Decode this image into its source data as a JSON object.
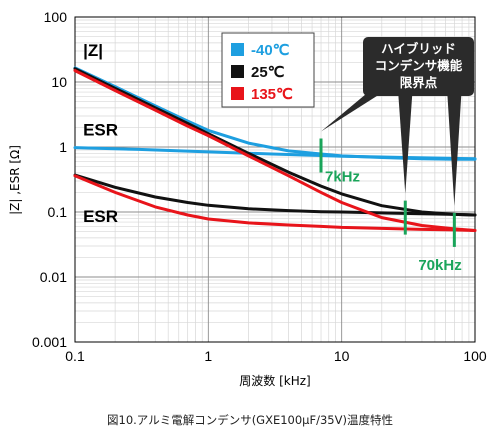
{
  "chart_data": {
    "type": "line",
    "title": "",
    "caption": "図10.アルミ電解コンデンサ(GXE100μF/35V)温度特性",
    "xlabel": "周波数 [kHz]",
    "ylabel": "|Z| ,ESR [Ω]",
    "x_scale": "log",
    "y_scale": "log",
    "xlim": [
      0.1,
      100
    ],
    "ylim": [
      0.001,
      100
    ],
    "x_ticks": [
      {
        "value": 0.1,
        "label": "0.1"
      },
      {
        "value": 1,
        "label": "1"
      },
      {
        "value": 10,
        "label": "10"
      },
      {
        "value": 100,
        "label": "100"
      }
    ],
    "y_ticks": [
      {
        "value": 100,
        "label": "100"
      },
      {
        "value": 10,
        "label": "10"
      },
      {
        "value": 1,
        "label": "1"
      },
      {
        "value": 0.1,
        "label": "0.1"
      },
      {
        "value": 0.01,
        "label": "0.01"
      },
      {
        "value": 0.001,
        "label": "0.001"
      }
    ],
    "grid": true,
    "legend": [
      {
        "label": "-40℃",
        "color": "#1e9fe0",
        "text_color": "#1e9fe0"
      },
      {
        "label": "25℃",
        "color": "#111111",
        "text_color": "#111111"
      },
      {
        "label": "135℃",
        "color": "#e8141a",
        "text_color": "#e8141a"
      }
    ],
    "legend_position": "top-center",
    "series": [
      {
        "legend_index": 0,
        "kind": "Z",
        "color": "#1e9fe0",
        "x": [
          0.1,
          0.2,
          0.4,
          0.7,
          1,
          2,
          4,
          7,
          10,
          20,
          40,
          70,
          100
        ],
        "y": [
          16.5,
          8.5,
          4.3,
          2.5,
          1.8,
          1.15,
          0.87,
          0.78,
          0.73,
          0.69,
          0.66,
          0.65,
          0.65
        ]
      },
      {
        "legend_index": 0,
        "kind": "ESR",
        "color": "#1e9fe0",
        "x": [
          0.1,
          0.3,
          1,
          3,
          7,
          10,
          30,
          100
        ],
        "y": [
          0.98,
          0.92,
          0.84,
          0.78,
          0.74,
          0.72,
          0.69,
          0.66
        ]
      },
      {
        "legend_index": 1,
        "kind": "Z",
        "color": "#111111",
        "x": [
          0.1,
          0.2,
          0.4,
          0.7,
          1,
          2,
          4,
          7,
          10,
          20,
          40,
          70,
          100
        ],
        "y": [
          16,
          8.0,
          4.0,
          2.3,
          1.6,
          0.8,
          0.41,
          0.25,
          0.19,
          0.125,
          0.1,
          0.092,
          0.09
        ]
      },
      {
        "legend_index": 1,
        "kind": "ESR",
        "color": "#111111",
        "x": [
          0.1,
          0.2,
          0.4,
          0.7,
          1,
          2,
          4,
          7,
          10,
          20,
          40,
          70,
          100
        ],
        "y": [
          0.37,
          0.24,
          0.17,
          0.14,
          0.127,
          0.112,
          0.105,
          0.101,
          0.1,
          0.097,
          0.094,
          0.092,
          0.09
        ]
      },
      {
        "legend_index": 2,
        "kind": "Z",
        "color": "#e8141a",
        "x": [
          0.1,
          0.2,
          0.4,
          0.7,
          1,
          2,
          4,
          7,
          10,
          20,
          40,
          70,
          100
        ],
        "y": [
          15,
          7.4,
          3.7,
          2.1,
          1.5,
          0.73,
          0.36,
          0.2,
          0.14,
          0.082,
          0.062,
          0.055,
          0.052
        ]
      },
      {
        "legend_index": 2,
        "kind": "ESR",
        "color": "#e8141a",
        "x": [
          0.1,
          0.2,
          0.4,
          0.7,
          1,
          2,
          4,
          7,
          10,
          20,
          40,
          70,
          100
        ],
        "y": [
          0.36,
          0.2,
          0.12,
          0.09,
          0.078,
          0.068,
          0.063,
          0.06,
          0.058,
          0.056,
          0.054,
          0.053,
          0.052
        ]
      }
    ],
    "curve_labels": [
      {
        "text": "|Z|",
        "x": 0.115,
        "y": 25
      },
      {
        "text": "ESR",
        "x": 0.115,
        "y": 1.5
      },
      {
        "text": "ESR",
        "x": 0.115,
        "y": 0.07
      }
    ],
    "callout": {
      "lines": [
        "ハイブリッド",
        "コンデンサ機能",
        "限界点"
      ],
      "markers": [
        {
          "x": 7,
          "y": 0.74,
          "color": "#1aa45a",
          "label": "7kHz"
        },
        {
          "x": 30,
          "y": 0.082,
          "color": "#1aa45a",
          "label": ""
        },
        {
          "x": 70,
          "y": 0.053,
          "color": "#1aa45a",
          "label": "70kHz"
        }
      ]
    }
  }
}
